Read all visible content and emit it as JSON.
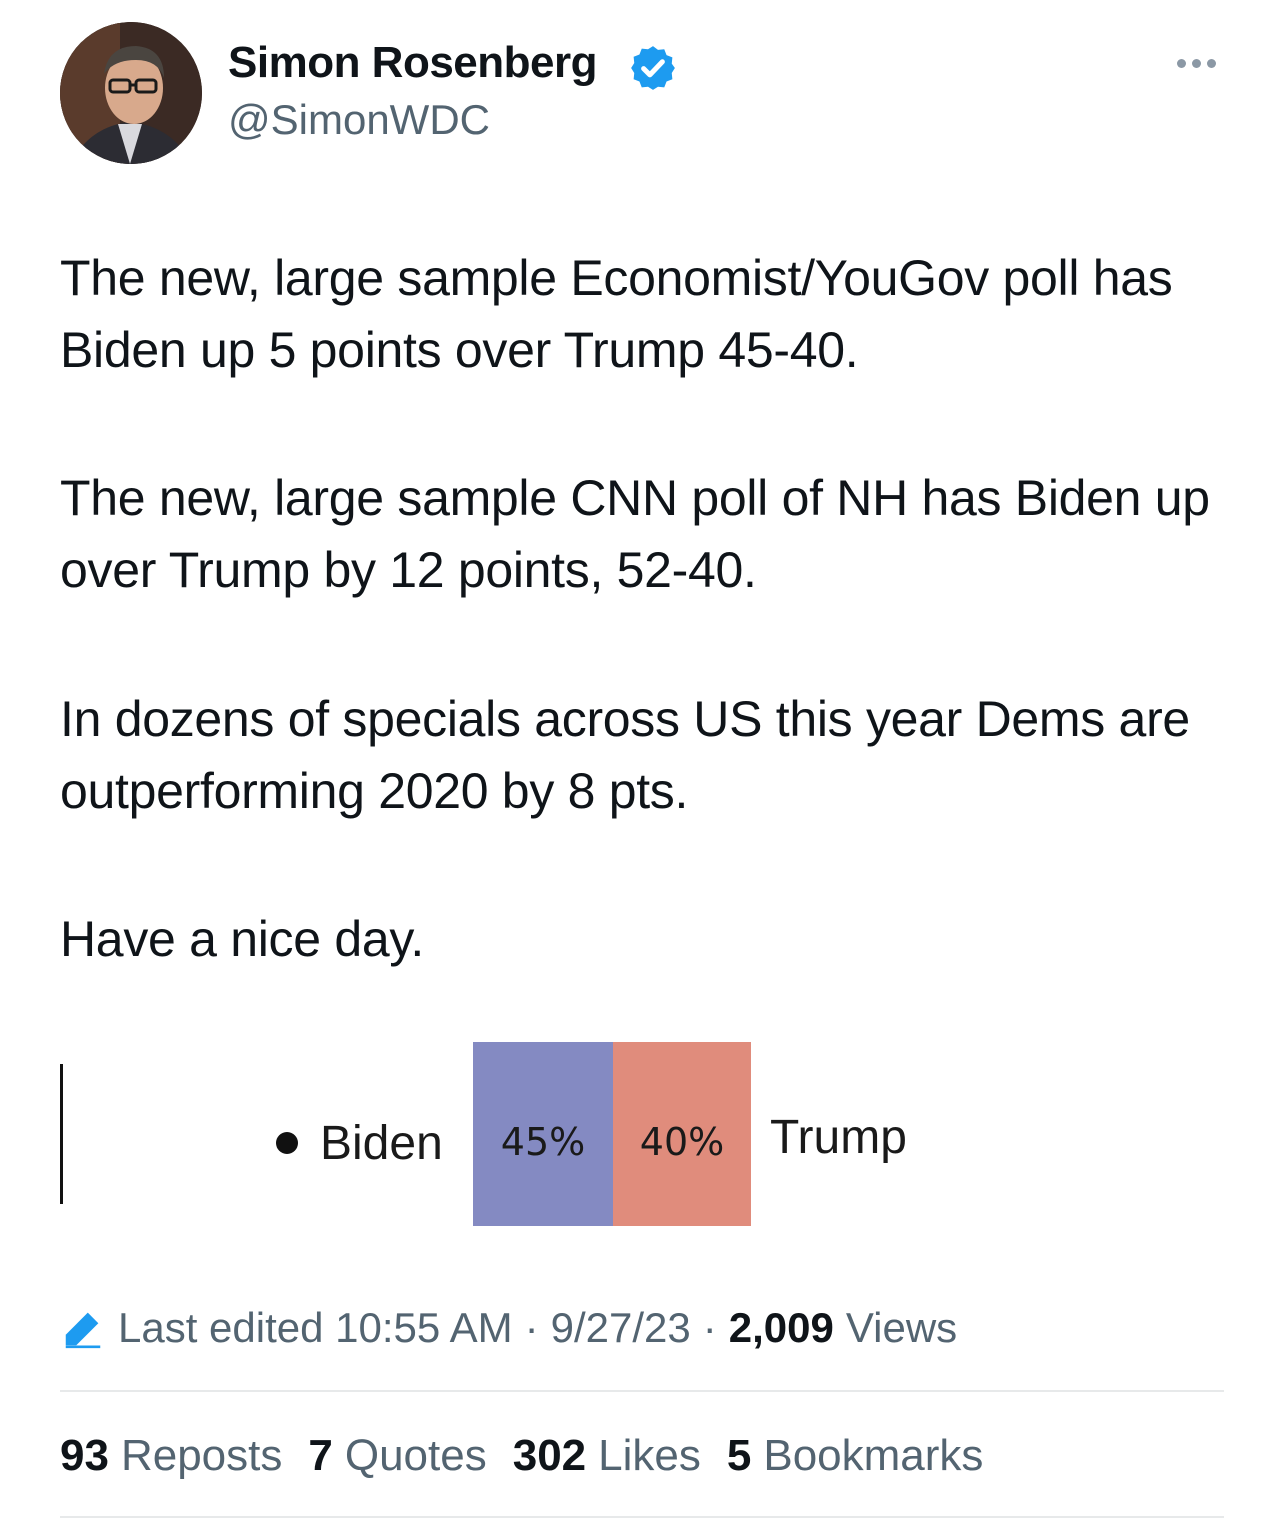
{
  "author": {
    "display_name": "Simon Rosenberg",
    "handle": "@SimonWDC"
  },
  "tweet": {
    "paragraphs": [
      "The new, large sample Economist/YouGov poll has Biden up 5 points over Trump 45-40.",
      "The new, large sample CNN poll of NH has Biden up over Trump by 12 points, 52-40.",
      "In dozens of specials across US this year Dems are outperforming 2020 by 8 pts.",
      "Have a nice day."
    ]
  },
  "media": {
    "left_label": "Biden",
    "left_value": "45%",
    "right_value": "40%",
    "right_label": "Trump",
    "colors": {
      "biden": "#848ac2",
      "trump": "#e08c7c"
    }
  },
  "meta": {
    "edited_text": "Last edited 10:55 AM",
    "date": "9/27/23",
    "views_count": "2,009",
    "views_label": "Views"
  },
  "stats": [
    {
      "count": "93",
      "label": "Reposts"
    },
    {
      "count": "7",
      "label": "Quotes"
    },
    {
      "count": "302",
      "label": "Likes"
    },
    {
      "count": "5",
      "label": "Bookmarks"
    }
  ],
  "icons": {
    "verified": "verified-badge-icon",
    "more": "more-options-icon",
    "edit": "edit-pencil-icon"
  },
  "colors": {
    "verified_blue": "#1d9bf0",
    "secondary_text": "#536471",
    "primary_text": "#0f1419"
  }
}
